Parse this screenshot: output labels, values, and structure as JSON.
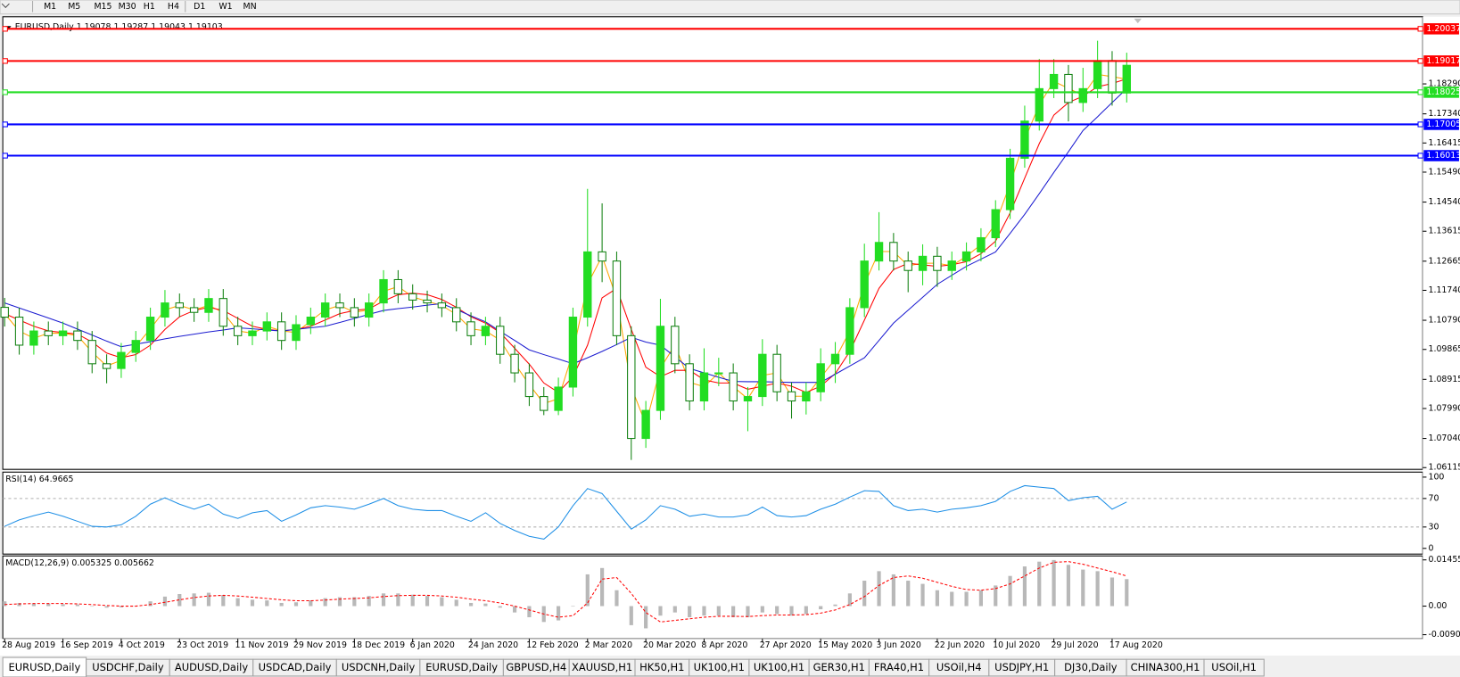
{
  "toolbar": [
    "M1",
    "M5",
    "M15",
    "M30",
    "H1",
    "H4",
    "D1",
    "W1",
    "MN"
  ],
  "tabs": [
    "EURUSD,Daily",
    "USDCHF,Daily",
    "AUDUSD,Daily",
    "USDCAD,Daily",
    "USDCNH,Daily",
    "EURUSD,Daily",
    "GBPUSD,H4",
    "XAUUSD,H1",
    "HK50,H1",
    "UK100,H1",
    "UK100,H1",
    "GER30,H1",
    "FRA40,H1",
    "USOil,H4",
    "USDJPY,H1",
    "DJ30,Daily",
    "CHINA300,H1",
    "USOil,H1"
  ],
  "chart_data": [
    {
      "type": "candlestick",
      "title": "EURUSD,Daily 1.19078 1.19287 1.19043 1.19103",
      "categories": [
        "28 Aug 2019",
        null,
        null,
        null,
        "16 Sep 2019",
        null,
        null,
        null,
        "4 Oct 2019",
        null,
        null,
        null,
        "23 Oct 2019",
        null,
        null,
        null,
        "11 Nov 2019",
        null,
        null,
        null,
        "29 Nov 2019",
        null,
        null,
        null,
        "18 Dec 2019",
        null,
        null,
        null,
        "6 Jan 2020",
        null,
        null,
        null,
        "24 Jan 2020",
        null,
        null,
        null,
        "12 Feb 2020",
        null,
        null,
        null,
        "2 Mar 2020",
        null,
        null,
        null,
        "20 Mar 2020",
        null,
        null,
        null,
        "8 Apr 2020",
        null,
        null,
        null,
        "27 Apr 2020",
        null,
        null,
        null,
        "15 May 2020",
        null,
        null,
        null,
        "3 Jun 2020",
        null,
        null,
        null,
        "22 Jun 2020",
        null,
        null,
        null,
        "10 Jul 2020",
        null,
        null,
        null,
        "29 Jul 2020",
        null,
        null,
        null,
        "17 Aug 2020",
        null
      ],
      "open": [
        1.112,
        1.1089,
        1.1,
        1.1045,
        1.103,
        1.1045,
        1.1015,
        1.0941,
        1.0926,
        1.0977,
        1.1015,
        1.1089,
        1.1134,
        1.1119,
        1.1104,
        1.1148,
        1.106,
        1.103,
        1.1045,
        1.1074,
        1.1015,
        1.1065,
        1.1089,
        1.1134,
        1.1119,
        1.1089,
        1.1134,
        1.1208,
        1.1163,
        1.1143,
        1.1134,
        1.1119,
        1.1074,
        1.103,
        1.106,
        1.0971,
        1.0912,
        1.0837,
        1.0793,
        1.0867,
        1.1089,
        1.1296,
        1.1267,
        1.103,
        1.0704,
        1.0793,
        1.106,
        1.0941,
        1.0823,
        1.0912,
        1.0912,
        1.0823,
        1.0837,
        1.0971,
        1.0852,
        1.0823,
        1.0852,
        1.0941,
        1.0971,
        1.1119,
        1.1267,
        1.1326,
        1.1267,
        1.1237,
        1.1282,
        1.1237,
        1.1267,
        1.1296,
        1.1341,
        1.143,
        1.1593,
        1.1711,
        1.1814,
        1.1859,
        1.177,
        1.1814,
        1.1903,
        1.18
      ],
      "high": [
        1.115,
        1.1119,
        1.1075,
        1.1075,
        1.1075,
        1.1075,
        1.1045,
        1.0971,
        1.1007,
        1.1045,
        1.1119,
        1.1175,
        1.1164,
        1.1149,
        1.1178,
        1.1178,
        1.109,
        1.1075,
        1.1104,
        1.1104,
        1.1095,
        1.1119,
        1.1164,
        1.1164,
        1.1149,
        1.1164,
        1.1238,
        1.1238,
        1.1193,
        1.1173,
        1.1164,
        1.1149,
        1.1104,
        1.109,
        1.109,
        1.1001,
        1.0942,
        1.0867,
        1.0897,
        1.1119,
        1.1496,
        1.145,
        1.1297,
        1.106,
        1.0823,
        1.1147,
        1.109,
        1.0971,
        1.099,
        1.096,
        1.0942,
        1.0867,
        1.1019,
        1.1001,
        1.0882,
        1.0882,
        1.099,
        1.101,
        1.1149,
        1.1322,
        1.1422,
        1.1356,
        1.1297,
        1.132,
        1.1312,
        1.1297,
        1.1326,
        1.1371,
        1.146,
        1.1623,
        1.176,
        1.1908,
        1.1908,
        1.1889,
        1.188,
        1.1966,
        1.1933,
        1.1928
      ],
      "low": [
        1.1059,
        1.097,
        1.097,
        1.1,
        1.1,
        1.0985,
        1.0911,
        1.0879,
        1.0896,
        1.0947,
        1.0985,
        1.1059,
        1.1089,
        1.1074,
        1.1074,
        1.103,
        1.1,
        1.1,
        1.1015,
        1.0985,
        1.0985,
        1.1035,
        1.1059,
        1.1089,
        1.1059,
        1.1059,
        1.1104,
        1.1133,
        1.1113,
        1.1104,
        1.1089,
        1.1044,
        1.1,
        1.1,
        1.0941,
        1.0882,
        1.0807,
        1.0778,
        1.0778,
        1.0837,
        1.1059,
        1.12,
        1.1,
        1.0636,
        1.0674,
        1.0763,
        1.0911,
        1.0793,
        1.0793,
        1.087,
        1.0793,
        1.0727,
        1.0807,
        1.0822,
        1.0767,
        1.078,
        1.0822,
        1.088,
        1.0941,
        1.1089,
        1.1237,
        1.1237,
        1.1168,
        1.119,
        1.1185,
        1.1207,
        1.1237,
        1.1266,
        1.1311,
        1.14,
        1.1563,
        1.1681,
        1.1784,
        1.171,
        1.174,
        1.1784,
        1.176,
        1.177
      ],
      "close": [
        1.1089,
        1.1,
        1.1045,
        1.103,
        1.1045,
        1.1015,
        1.0941,
        1.0926,
        1.0977,
        1.1015,
        1.1089,
        1.1134,
        1.1119,
        1.1104,
        1.1148,
        1.106,
        1.103,
        1.1045,
        1.1074,
        1.1015,
        1.1065,
        1.1089,
        1.1134,
        1.1119,
        1.1089,
        1.1134,
        1.1208,
        1.1163,
        1.1143,
        1.1134,
        1.1119,
        1.1074,
        1.103,
        1.106,
        1.0971,
        1.0912,
        1.0837,
        1.0793,
        1.0867,
        1.1089,
        1.1296,
        1.1267,
        1.103,
        1.0704,
        1.0793,
        1.106,
        1.0941,
        1.0823,
        1.0912,
        1.0912,
        1.0823,
        1.0837,
        1.0971,
        1.0852,
        1.0823,
        1.0852,
        1.0941,
        1.0971,
        1.1119,
        1.1267,
        1.1326,
        1.1267,
        1.1237,
        1.1282,
        1.1237,
        1.1267,
        1.1296,
        1.1341,
        1.143,
        1.1593,
        1.1711,
        1.1814,
        1.1859,
        1.177,
        1.1814,
        1.1903,
        1.18,
        1.1888
      ],
      "up_color": "#22dd22",
      "down_color": "#108010",
      "series": [
        {
          "color": "#ffa500",
          "values": [
            1.11,
            1.1045,
            1.1022,
            1.1038,
            1.1038,
            1.103,
            1.0978,
            1.0934,
            1.0952,
            1.0996,
            1.1052,
            1.1112,
            1.1126,
            1.1112,
            1.1126,
            1.1104,
            1.1045,
            1.1038,
            1.106,
            1.1045,
            1.104,
            1.1077,
            1.1112,
            1.1126,
            1.1104,
            1.1112,
            1.1171,
            1.1186,
            1.1153,
            1.1139,
            1.1126,
            1.1097,
            1.1052,
            1.1045,
            1.1016,
            1.0942,
            1.0875,
            1.0815,
            1.083,
            1.0978,
            1.1193,
            1.1282,
            1.1149,
            1.0867,
            1.0749,
            1.0927,
            1.1001,
            1.0882,
            1.0868,
            1.0912,
            1.0868,
            1.083,
            1.0904,
            1.0912,
            1.0838,
            1.0838,
            1.0897,
            1.0956,
            1.1045,
            1.1193,
            1.1297,
            1.1297,
            1.1252,
            1.126,
            1.126,
            1.1252,
            1.1282,
            1.1319,
            1.1386,
            1.1512,
            1.1652,
            1.1763,
            1.1837,
            1.1815,
            1.1792,
            1.1859,
            1.1852,
            1.1844
          ]
        },
        {
          "color": "#ff0000",
          "values": [
            1.11,
            1.108,
            1.106,
            1.1045,
            1.104,
            1.1035,
            1.101,
            1.0975,
            1.096,
            1.097,
            1.1,
            1.105,
            1.109,
            1.111,
            1.112,
            1.111,
            1.1085,
            1.106,
            1.105,
            1.1045,
            1.105,
            1.106,
            1.108,
            1.11,
            1.111,
            1.1115,
            1.114,
            1.116,
            1.1165,
            1.116,
            1.1145,
            1.112,
            1.109,
            1.107,
            1.104,
            1.099,
            1.094,
            1.088,
            1.085,
            1.09,
            1.1,
            1.115,
            1.118,
            1.105,
            1.093,
            1.09,
            1.092,
            1.092,
            1.089,
            1.088,
            1.088,
            1.086,
            1.087,
            1.088,
            1.087,
            1.085,
            1.087,
            1.091,
            1.098,
            1.108,
            1.118,
            1.124,
            1.126,
            1.1255,
            1.125,
            1.1255,
            1.1265,
            1.129,
            1.133,
            1.142,
            1.153,
            1.164,
            1.173,
            1.177,
            1.179,
            1.182,
            1.183,
            1.1845
          ]
        },
        {
          "color": "#1c1cd0",
          "values": [
            1.1134,
            1.1118,
            1.1102,
            1.1086,
            1.107,
            1.1051,
            1.1032,
            1.1013,
            1.0995,
            1.1003,
            1.1011,
            1.102,
            1.1028,
            1.1035,
            1.1042,
            1.1048,
            1.1055,
            1.1052,
            1.1048,
            1.1045,
            1.105,
            1.1055,
            1.106,
            1.1072,
            1.1085,
            1.1098,
            1.111,
            1.1116,
            1.1121,
            1.1127,
            1.1132,
            1.1113,
            1.1093,
            1.1074,
            1.1044,
            1.1015,
            1.0985,
            1.097,
            1.0956,
            1.0941,
            1.096,
            1.098,
            1.1002,
            1.1025,
            1.101,
            1.1,
            1.0963,
            1.0926,
            1.0912,
            1.0898,
            1.0885,
            1.0884,
            1.0884,
            1.0883,
            1.0882,
            1.0882,
            1.0882,
            1.0908,
            1.0934,
            1.096,
            1.1015,
            1.107,
            1.1111,
            1.1152,
            1.1193,
            1.1222,
            1.125,
            1.1273,
            1.1296,
            1.1355,
            1.1415,
            1.1481,
            1.1548,
            1.1614,
            1.1681,
            1.1725,
            1.177,
            1.1814
          ]
        }
      ],
      "levels": [
        {
          "value": 1.20037,
          "color": "#ff0000"
        },
        {
          "value": 1.19017,
          "color": "#ff0000"
        },
        {
          "value": 1.18025,
          "color": "#22dd22"
        },
        {
          "value": 1.17005,
          "color": "#0000ff"
        },
        {
          "value": 1.16013,
          "color": "#0000ff"
        }
      ],
      "ylim": [
        1.0606,
        1.2042
      ],
      "yticks": [
        {
          "value": 1.1829,
          "label": "1.18290"
        },
        {
          "value": 1.1734,
          "label": "1.17340"
        },
        1.16415,
        {
          "value": 1.1549,
          "label": "1.15490"
        },
        {
          "value": 1.1454,
          "label": "1.14540"
        },
        1.13615,
        1.12665,
        {
          "value": 1.1174,
          "label": "1.11740"
        },
        {
          "value": 1.1079,
          "label": "1.10790"
        },
        1.09865,
        1.08915,
        {
          "value": 1.0799,
          "label": "1.07990"
        },
        {
          "value": 1.0704,
          "label": "1.07040"
        },
        1.06115
      ]
    },
    {
      "type": "line",
      "title": "RSI(14) 64.9665",
      "series": [
        {
          "color": "#1e8fe6",
          "values": [
            31,
            40,
            46,
            51,
            45,
            38,
            31,
            30,
            33,
            45,
            62,
            71,
            62,
            55,
            62,
            48,
            42,
            50,
            53,
            38,
            47,
            57,
            60,
            58,
            55,
            62,
            70,
            60,
            55,
            53,
            53,
            45,
            38,
            50,
            35,
            25,
            17,
            13,
            30,
            60,
            84,
            77,
            52,
            27,
            40,
            60,
            55,
            45,
            48,
            44,
            44,
            47,
            58,
            46,
            44,
            46,
            55,
            62,
            72,
            81,
            80,
            60,
            53,
            55,
            51,
            55,
            57,
            60,
            66,
            80,
            88,
            86,
            84,
            67,
            71,
            73,
            55,
            65
          ]
        }
      ],
      "levels": [
        30,
        70
      ],
      "ylim": [
        -8,
        107
      ],
      "yticks": [
        0,
        30,
        70,
        100
      ]
    },
    {
      "type": "macd",
      "title": "MACD(12,26,9) 0.005325 0.005662",
      "series": [
        {
          "kind": "bar",
          "color": "#b8b8b8",
          "values": [
            0.0015,
            0.001,
            0.0008,
            0.0008,
            0.0006,
            0.0005,
            0.0,
            -0.0005,
            -0.0004,
            0.0,
            0.0015,
            0.003,
            0.0038,
            0.004,
            0.0042,
            0.0035,
            0.0025,
            0.002,
            0.0018,
            0.001,
            0.0012,
            0.0018,
            0.0025,
            0.0028,
            0.0028,
            0.0032,
            0.004,
            0.004,
            0.0036,
            0.0032,
            0.0028,
            0.002,
            0.001,
            0.0008,
            -0.0005,
            -0.002,
            -0.0035,
            -0.005,
            -0.0045,
            0.0,
            0.01,
            0.012,
            0.005,
            -0.006,
            -0.007,
            -0.003,
            -0.002,
            -0.0035,
            -0.003,
            -0.003,
            -0.0035,
            -0.0035,
            -0.002,
            -0.0025,
            -0.003,
            -0.0025,
            -0.001,
            0.0005,
            0.004,
            0.008,
            0.011,
            0.01,
            0.008,
            0.007,
            0.005,
            0.0045,
            0.0045,
            0.005,
            0.0065,
            0.0095,
            0.0125,
            0.014,
            0.0145,
            0.013,
            0.0115,
            0.011,
            0.009,
            0.0085
          ]
        },
        {
          "kind": "line",
          "color": "#ff0000",
          "values": [
            0.0005,
            0.0007,
            0.0008,
            0.0008,
            0.0008,
            0.0007,
            0.0005,
            0.0002,
            0.0,
            0.0,
            0.0005,
            0.0012,
            0.002,
            0.0027,
            0.0032,
            0.0034,
            0.0032,
            0.0028,
            0.0024,
            0.002,
            0.0017,
            0.0017,
            0.0019,
            0.0022,
            0.0024,
            0.0026,
            0.003,
            0.0033,
            0.0034,
            0.0034,
            0.0032,
            0.0028,
            0.0022,
            0.0017,
            0.001,
            0.0,
            -0.0012,
            -0.0025,
            -0.0035,
            -0.003,
            0.001,
            0.0085,
            0.009,
            0.004,
            -0.002,
            -0.005,
            -0.0045,
            -0.004,
            -0.0035,
            -0.0032,
            -0.0032,
            -0.0033,
            -0.003,
            -0.0028,
            -0.0028,
            -0.0027,
            -0.0022,
            -0.0012,
            0.0005,
            0.003,
            0.0065,
            0.009,
            0.0095,
            0.0088,
            0.0075,
            0.0062,
            0.0052,
            0.005,
            0.0055,
            0.007,
            0.0095,
            0.012,
            0.0138,
            0.014,
            0.0132,
            0.012,
            0.0108,
            0.0095
          ]
        }
      ],
      "ylim": [
        -0.0103,
        0.0158
      ],
      "yticks": [
        0.014556,
        {
          "value": 0,
          "label": "0.00"
        },
        {
          "value": -0.009,
          "label": "-0.00900"
        }
      ]
    }
  ]
}
